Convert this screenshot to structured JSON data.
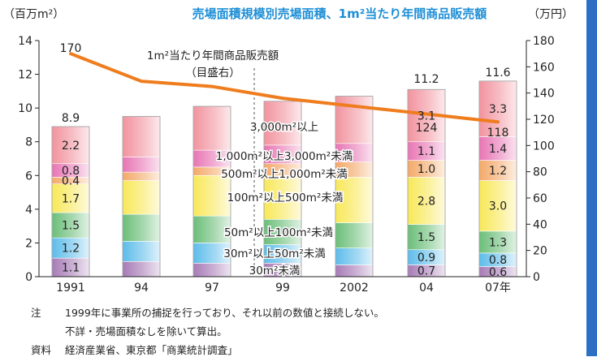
{
  "colors": {
    "title": "#1e8fd6",
    "line": "#ef7d1e",
    "sidebar": "#2d6fc4",
    "segments": [
      "#8a4f9e",
      "#27a6e3",
      "#39a84c",
      "#f5e020",
      "#f08c36",
      "#e0479b",
      "#ee6f7e"
    ]
  },
  "chart_data": {
    "type": "bar",
    "title": "売場面積規模別売場面積、1m²当たり年間商品販売額",
    "y_left_unit": "（百万m²）",
    "y_right_unit": "（万円）",
    "y_left_range": [
      0,
      14
    ],
    "y_left_ticks": [
      "0",
      "2",
      "4",
      "6",
      "8",
      "10",
      "12",
      "14"
    ],
    "y_right_range": [
      0,
      180
    ],
    "y_right_ticks": [
      "0",
      "20",
      "40",
      "60",
      "80",
      "100",
      "120",
      "140",
      "160",
      "180"
    ],
    "categories": [
      "1991",
      "94",
      "97",
      "99",
      "2002",
      "04",
      "07年"
    ],
    "series": [
      {
        "name": "30m²未満",
        "values": [
          1.1,
          0.9,
          0.8,
          0.8,
          0.7,
          0.7,
          0.6
        ]
      },
      {
        "name": "30m²以上50m²未満",
        "values": [
          1.2,
          1.2,
          1.2,
          1.1,
          1.0,
          0.9,
          0.8
        ]
      },
      {
        "name": "50m²以上100m²未満",
        "values": [
          1.5,
          1.6,
          1.6,
          1.5,
          1.5,
          1.5,
          1.3
        ]
      },
      {
        "name": "100m²以上500m²未満",
        "values": [
          1.7,
          2.0,
          2.4,
          2.6,
          2.7,
          2.8,
          3.0
        ]
      },
      {
        "name": "500m²以上1,000m²未満",
        "values": [
          0.4,
          0.5,
          0.5,
          0.7,
          0.9,
          1.0,
          1.2
        ]
      },
      {
        "name": "1,000m²以上3,000m²未満",
        "values": [
          0.8,
          0.9,
          1.0,
          1.1,
          1.1,
          1.1,
          1.4
        ]
      },
      {
        "name": "3,000m²以上",
        "values": [
          2.2,
          2.4,
          2.6,
          2.6,
          2.8,
          3.1,
          3.3
        ]
      }
    ],
    "totals": [
      8.9,
      9.5,
      10.1,
      10.4,
      10.7,
      11.2,
      11.6
    ],
    "line": {
      "name": "1m²当たり年間商品販売額",
      "axis_note": "（目盛右）",
      "values": [
        170,
        149,
        145,
        136,
        130,
        124,
        118
      ],
      "axis": "right"
    },
    "labeled_values": {
      "0": {
        "totals": "8.9",
        "segments": [
          "1.1",
          "1.2",
          "1.5",
          "1.7",
          "0.4",
          "0.8",
          "2.2"
        ],
        "line": "170"
      },
      "5": {
        "totals": "11.2",
        "segments": [
          "0.7",
          "0.9",
          "1.5",
          "2.8",
          "1.0",
          "1.1",
          "3.1"
        ],
        "line": "124"
      },
      "6": {
        "totals": "11.6",
        "segments": [
          "0.6",
          "0.8",
          "1.3",
          "3.0",
          "1.2",
          "1.4",
          "3.3"
        ],
        "line": "118"
      }
    },
    "grid": false
  },
  "notes": {
    "note_label": "注",
    "note_line1": "1999年に事業所の捕捉を行っており、それ以前の数値と接続しない。",
    "note_line2": "不詳・売場面積なしを除いて算出。",
    "source_label": "資料",
    "source_text": "経済産業省、東京都「商業統計調査」"
  }
}
